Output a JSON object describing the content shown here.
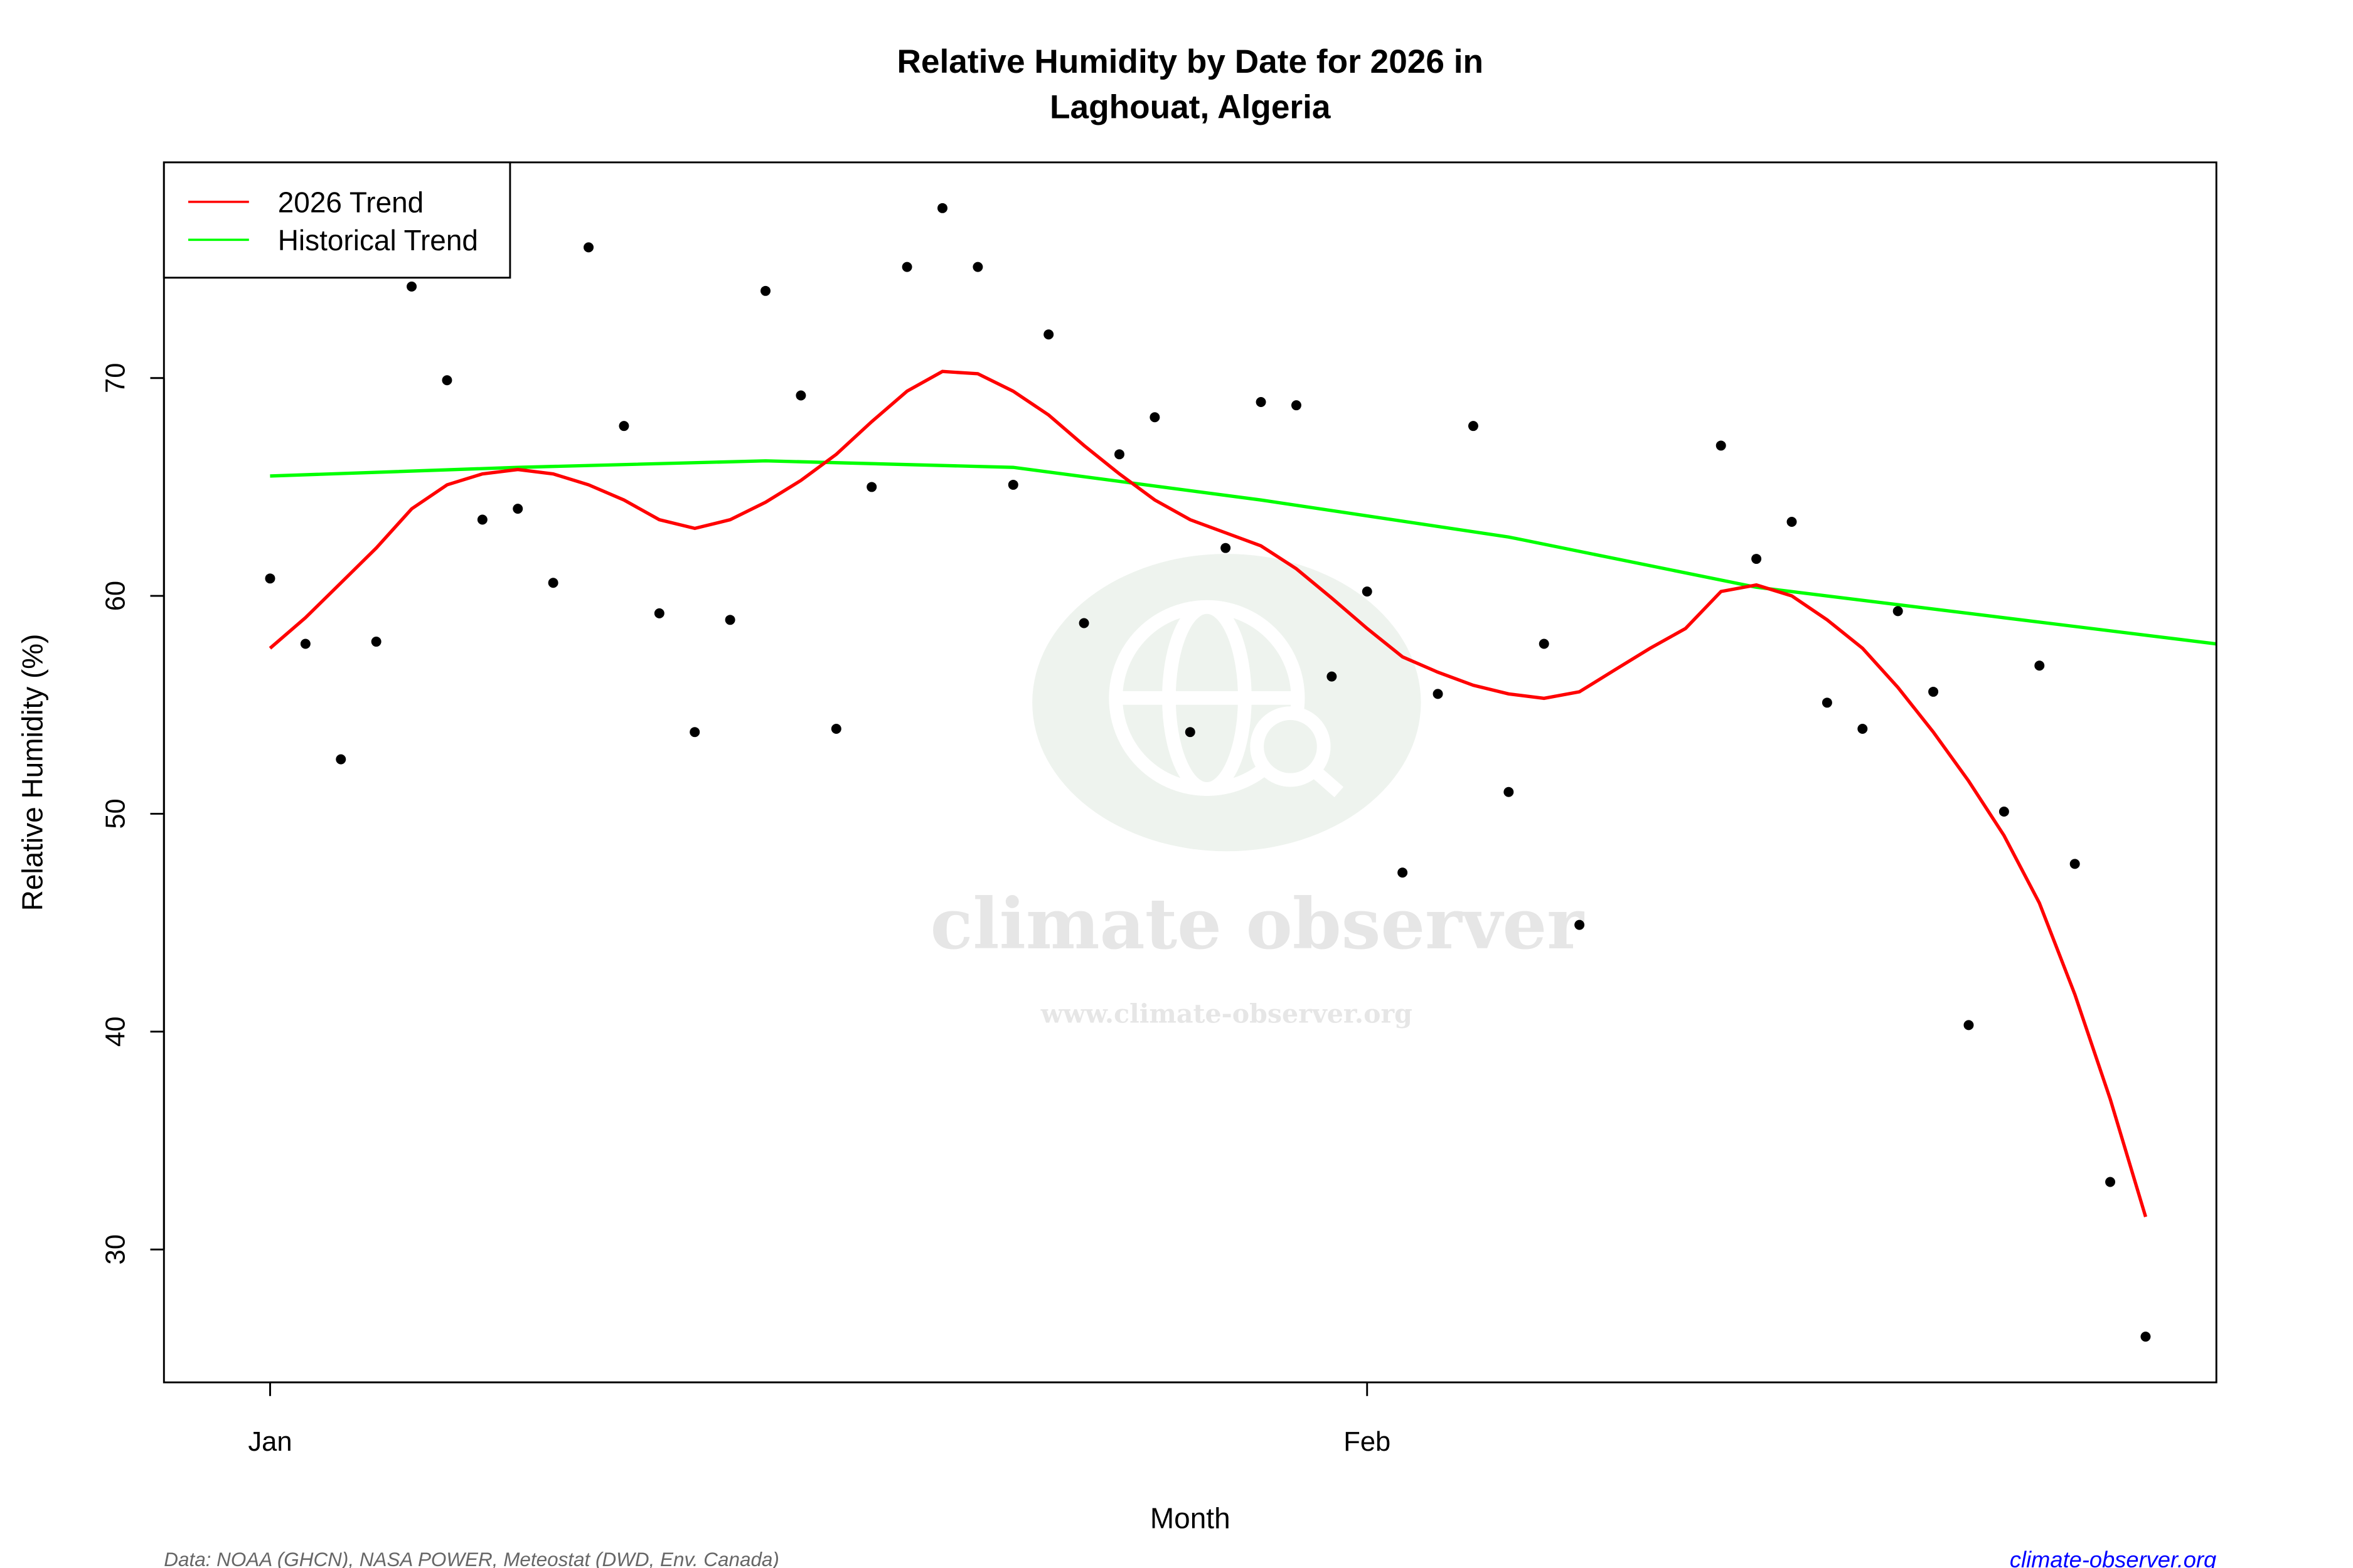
{
  "chart_data": {
    "type": "scatter",
    "title": "Relative Humidity by Date for 2026 in",
    "subtitle": "Laghouat, Algeria",
    "xlabel": "Month",
    "ylabel": "Relative Humidity (%)",
    "xlim": [
      "2025-12-29",
      "2026-02-25"
    ],
    "ylim": [
      23.9,
      79.9
    ],
    "x_ticks": [
      {
        "date": "2026-01-01",
        "label": "Jan"
      },
      {
        "date": "2026-02-01",
        "label": "Feb"
      }
    ],
    "y_ticks": [
      30,
      40,
      50,
      60,
      70
    ],
    "grid": false,
    "legend": {
      "position": "top-left",
      "entries": [
        {
          "label": "2026 Trend",
          "color": "#ff0000"
        },
        {
          "label": "Historical Trend",
          "color": "#00ff00"
        }
      ]
    },
    "start_date": "2026-01-01",
    "observations": [
      60.8,
      57.8,
      52.5,
      57.9,
      74.2,
      69.9,
      63.5,
      64.0,
      60.6,
      76.0,
      67.8,
      59.2,
      53.75,
      58.9,
      74.0,
      69.2,
      53.9,
      65.0,
      75.1,
      77.8,
      75.1,
      65.1,
      72.0,
      58.75,
      66.5,
      68.2,
      53.75,
      62.2,
      68.9,
      68.75,
      56.3,
      60.2,
      47.3,
      55.5,
      67.8,
      51.0,
      57.8,
      44.9,
      null,
      null,
      null,
      66.9,
      61.7,
      63.4,
      55.1,
      53.9,
      59.3,
      55.6,
      40.3,
      50.1,
      56.8,
      47.7,
      33.1,
      26.0
    ],
    "trend_2026": [
      57.6,
      59.0,
      60.6,
      62.2,
      64.0,
      65.1,
      65.6,
      65.8,
      65.6,
      65.1,
      64.4,
      63.5,
      63.1,
      63.5,
      64.3,
      65.3,
      66.5,
      68.0,
      69.4,
      70.3,
      70.2,
      69.4,
      68.3,
      66.9,
      65.6,
      64.4,
      63.5,
      62.9,
      62.3,
      61.25,
      59.9,
      58.5,
      57.2,
      56.5,
      55.9,
      55.5,
      55.3,
      55.6,
      56.6,
      57.6,
      58.5,
      60.2,
      60.5,
      60.0,
      58.9,
      57.6,
      55.8,
      53.75,
      51.5,
      49.0,
      45.9,
      41.7,
      36.9,
      31.5
    ],
    "historical_trend": [
      {
        "date": "2026-01-01",
        "value": 65.5
      },
      {
        "date": "2026-01-08",
        "value": 65.9
      },
      {
        "date": "2026-01-15",
        "value": 66.2
      },
      {
        "date": "2026-01-22",
        "value": 65.9
      },
      {
        "date": "2026-01-29",
        "value": 64.4
      },
      {
        "date": "2026-02-05",
        "value": 62.7
      },
      {
        "date": "2026-02-12",
        "value": 60.4
      },
      {
        "date": "2026-02-19",
        "value": 59.0
      },
      {
        "date": "2026-02-26",
        "value": 57.6
      }
    ],
    "colors": {
      "points": "#000000",
      "trend_2026": "#ff0000",
      "historical": "#00ff00"
    }
  },
  "watermark": {
    "name": "climate observer",
    "url": "www.climate-observer.org",
    "icon": "globe-search-icon"
  },
  "footer": {
    "source": "Data: NOAA (GHCN), NASA POWER, Meteostat (DWD, Env. Canada)",
    "site": "climate-observer.org",
    "site_color": "#0000ff"
  }
}
